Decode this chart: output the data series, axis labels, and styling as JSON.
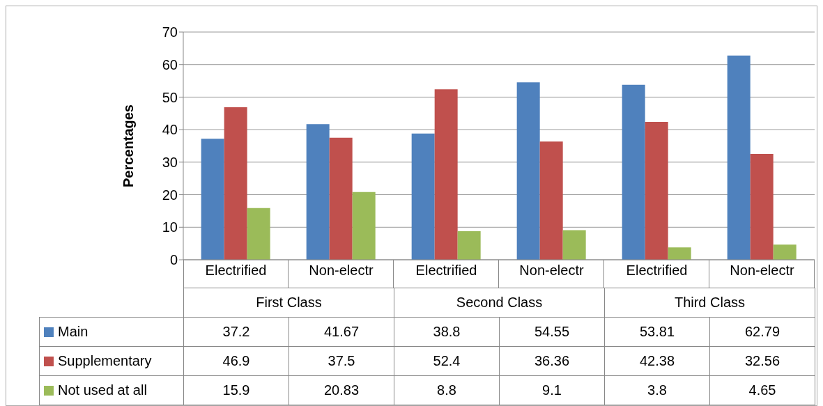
{
  "chart_data": {
    "type": "bar",
    "ylabel": "Percentages",
    "categories": [
      "Electrified",
      "Non-electr",
      "Electrified",
      "Non-electr",
      "Electrified",
      "Non-electr"
    ],
    "annotations": [
      "First Class",
      "Second Class",
      "Third Class"
    ],
    "series": [
      {
        "name": "Main",
        "color": "#4f81bd",
        "values": [
          37.2,
          41.67,
          38.8,
          54.55,
          53.81,
          62.79
        ]
      },
      {
        "name": "Supplementary",
        "color": "#c0504d",
        "values": [
          46.9,
          37.5,
          52.4,
          36.36,
          42.38,
          32.56
        ]
      },
      {
        "name": "Not used at all",
        "color": "#9bbb59",
        "values": [
          15.9,
          20.83,
          8.8,
          9.1,
          3.8,
          4.65
        ]
      }
    ],
    "ylim": [
      0,
      70
    ],
    "yticks": [
      0,
      10,
      20,
      30,
      40,
      50,
      60,
      70
    ],
    "grid": "y",
    "legend": "bottom left",
    "data_labels": true
  }
}
